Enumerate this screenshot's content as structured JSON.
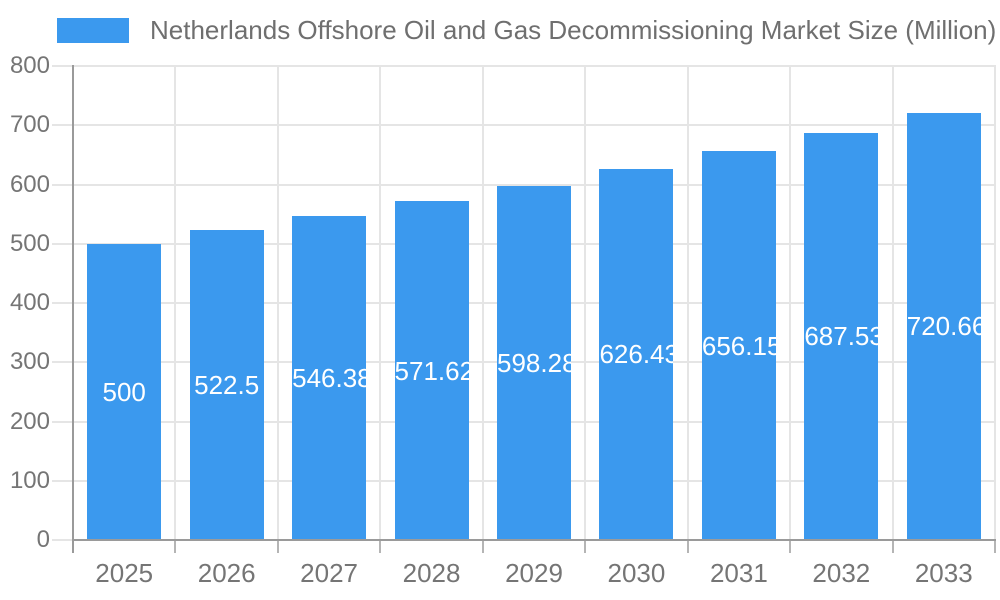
{
  "chart_data": {
    "type": "bar",
    "title": "Netherlands Offshore Oil and Gas Decommissioning Market Size (Million)",
    "legend_position": "top-left",
    "categories": [
      "2025",
      "2026",
      "2027",
      "2028",
      "2029",
      "2030",
      "2031",
      "2032",
      "2033"
    ],
    "values": [
      500,
      522.5,
      546.38,
      571.62,
      598.28,
      626.43,
      656.15,
      687.53,
      720.66
    ],
    "value_labels": [
      "500",
      "522.5",
      "546.38",
      "571.62",
      "598.28",
      "626.43",
      "656.15",
      "687.53",
      "720.66"
    ],
    "xlabel": "",
    "ylabel": "",
    "ylim": [
      0,
      800
    ],
    "yticks": [
      0,
      100,
      200,
      300,
      400,
      500,
      600,
      700,
      800
    ],
    "grid": true,
    "colors": {
      "bar": "#3b99ee",
      "bar_label": "#ffffff",
      "grid": "#e5e5e5",
      "axis": "#9a9a9a",
      "tick_mark": "#b5b5b5",
      "tick_text": "#757575",
      "legend_text": "#6f6f6f",
      "background": "#ffffff"
    }
  }
}
